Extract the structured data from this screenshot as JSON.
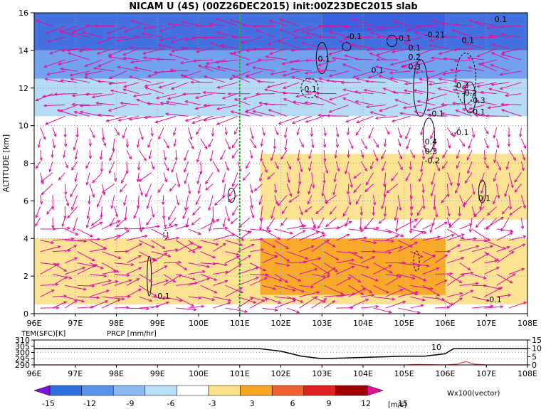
{
  "title": "NICAM U (4S) (00Z26DEC2015) init:00Z23DEC2015 slab",
  "chart_data": [
    {
      "type": "heatmap",
      "title": "NICAM U (4S) (00Z26DEC2015) init:00Z23DEC2015 slab",
      "ylabel": "ALTITUDE [km]",
      "xlim": [
        96,
        108
      ],
      "ylim": [
        0,
        16
      ],
      "x_ticks": [
        "96E",
        "97E",
        "98E",
        "99E",
        "100E",
        "101E",
        "102E",
        "103E",
        "104E",
        "105E",
        "106E",
        "107E",
        "108E"
      ],
      "y_ticks": [
        "0",
        "2",
        "4",
        "6",
        "8",
        "10",
        "12",
        "14",
        "16"
      ],
      "grid": true,
      "marker_line_lon": 101,
      "contour_labels": [
        "0.1",
        "-0.1",
        "0.1",
        "-0.1",
        "0.1",
        "-0.1",
        "-0.21",
        "0.1",
        "0.2",
        "0.3",
        "-0.3",
        "-0.2",
        "-0.1",
        "-0.3",
        "-0.1",
        "0.4",
        "0.3",
        "-0.2",
        "-0.1",
        "0.1",
        "0.1",
        "-0.1",
        "0.1"
      ],
      "bands": [
        {
          "y": [
            15.0,
            16.0
          ],
          "value": -15,
          "color": "#a020f0",
          "x": [
            103,
            106
          ]
        },
        {
          "y": [
            14.0,
            16.0
          ],
          "value": -12,
          "color": "#3366dd"
        },
        {
          "y": [
            12.5,
            14.0
          ],
          "value": -9,
          "color": "#6699ee"
        },
        {
          "y": [
            10.5,
            12.5
          ],
          "value": -6,
          "color": "#b0d8f4"
        },
        {
          "y": [
            8.5,
            10.5
          ],
          "value": 0,
          "color": "#ffffff"
        },
        {
          "y": [
            5.0,
            8.5
          ],
          "value": 4,
          "color": "#fbe18a",
          "x": [
            101.5,
            108
          ]
        },
        {
          "y": [
            0.5,
            4.0
          ],
          "value": 4,
          "color": "#fbe18a"
        },
        {
          "y": [
            1.0,
            4.0
          ],
          "value": 7,
          "color": "#f7a622",
          "x": [
            101.5,
            106
          ]
        }
      ]
    },
    {
      "type": "line",
      "series": [
        {
          "name": "TEM(SFC)[K]",
          "color": "#000000",
          "x": [
            96,
            101.5,
            102,
            102.5,
            103,
            104,
            105,
            105.5,
            106,
            106.2,
            107,
            108
          ],
          "values": [
            303,
            303,
            301,
            297,
            295,
            296,
            297,
            297,
            299,
            303,
            303,
            303
          ]
        },
        {
          "name": "PRCP [mm/hr]",
          "color": "#e04040",
          "x": [
            96,
            105,
            105.3,
            106,
            106.3,
            106.5,
            106.7,
            107,
            108
          ],
          "values": [
            0,
            0,
            0.3,
            0,
            0.5,
            2,
            0.5,
            0,
            0
          ]
        }
      ],
      "xlim": [
        96,
        108
      ],
      "left_ylim": [
        290,
        310
      ],
      "left_ticks": [
        "310",
        "305",
        "300",
        "295",
        "290"
      ],
      "right_ylim": [
        0,
        15
      ],
      "right_ticks": [
        "15",
        "10",
        "5",
        "0"
      ],
      "x_ticks": [
        "96E",
        "97E",
        "98E",
        "99E",
        "100E",
        "101E",
        "102E",
        "103E",
        "104E",
        "105E",
        "106E",
        "107E",
        "108E"
      ],
      "marker_label": "10"
    }
  ],
  "colorbar": {
    "ticks": [
      "-15",
      "-12",
      "-9",
      "-6",
      "-3",
      "3",
      "6",
      "9",
      "12",
      "15"
    ],
    "unit": "[m/s]",
    "colors": [
      "#8010e0",
      "#2f6fe0",
      "#5a92ea",
      "#8ab8f2",
      "#b8e0f8",
      "#ffffff",
      "#fbe18a",
      "#f7a622",
      "#f06030",
      "#e02020",
      "#a00000",
      "#e0109a"
    ]
  },
  "vector_label": "Wx100(vector)",
  "colors": {
    "vectors": "#e0109a",
    "marker_line": "#22aa22",
    "prcp": "#e04040"
  }
}
